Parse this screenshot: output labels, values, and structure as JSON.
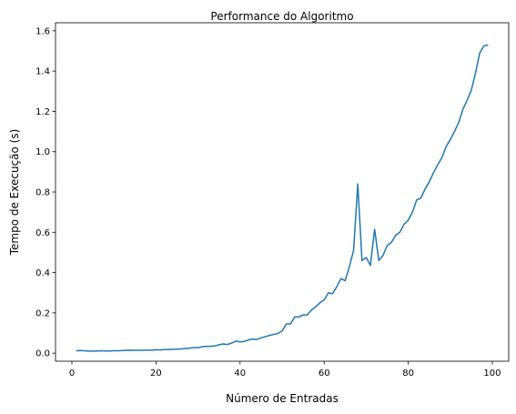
{
  "chart_data": {
    "type": "line",
    "title": "Performance do Algoritmo",
    "x_label": "Número de Entradas",
    "y_label": "Tempo de Execução (s)",
    "x": [
      1,
      2,
      3,
      4,
      5,
      6,
      7,
      8,
      9,
      10,
      11,
      12,
      13,
      14,
      15,
      16,
      17,
      18,
      19,
      20,
      21,
      22,
      23,
      24,
      25,
      26,
      27,
      28,
      29,
      30,
      31,
      32,
      33,
      34,
      35,
      36,
      37,
      38,
      39,
      40,
      41,
      42,
      43,
      44,
      45,
      46,
      47,
      48,
      49,
      50,
      51,
      52,
      53,
      54,
      55,
      56,
      57,
      58,
      59,
      60,
      61,
      62,
      63,
      64,
      65,
      66,
      67,
      68,
      69,
      70,
      71,
      72,
      73,
      74,
      75,
      76,
      77,
      78,
      79,
      80,
      81,
      82,
      83,
      84,
      85,
      86,
      87,
      88,
      89,
      90,
      91,
      92,
      93,
      94,
      95,
      96,
      97,
      98,
      99
    ],
    "series": [
      {
        "color": "#1f77b4",
        "values": [
          0.012,
          0.013,
          0.012,
          0.01,
          0.01,
          0.011,
          0.012,
          0.011,
          0.011,
          0.012,
          0.012,
          0.013,
          0.014,
          0.015,
          0.014,
          0.014,
          0.015,
          0.015,
          0.015,
          0.017,
          0.016,
          0.018,
          0.018,
          0.019,
          0.02,
          0.021,
          0.023,
          0.025,
          0.028,
          0.027,
          0.032,
          0.034,
          0.034,
          0.036,
          0.042,
          0.046,
          0.043,
          0.05,
          0.06,
          0.056,
          0.058,
          0.066,
          0.07,
          0.068,
          0.076,
          0.082,
          0.088,
          0.093,
          0.098,
          0.11,
          0.145,
          0.145,
          0.18,
          0.18,
          0.19,
          0.19,
          0.215,
          0.23,
          0.25,
          0.265,
          0.3,
          0.295,
          0.33,
          0.37,
          0.36,
          0.43,
          0.51,
          0.84,
          0.46,
          0.475,
          0.435,
          0.615,
          0.46,
          0.485,
          0.535,
          0.55,
          0.585,
          0.6,
          0.64,
          0.66,
          0.7,
          0.76,
          0.77,
          0.815,
          0.85,
          0.895,
          0.935,
          0.97,
          1.025,
          1.06,
          1.1,
          1.145,
          1.21,
          1.255,
          1.305,
          1.39,
          1.49,
          1.525,
          1.53
        ]
      }
    ],
    "xlim": [
      -3.9,
      103.9
    ],
    "xticks": [
      0,
      20,
      40,
      60,
      80,
      100
    ],
    "ylim": [
      -0.04,
      1.64
    ],
    "yticks": [
      {
        "value": 0,
        "label": "0.0"
      },
      0.2,
      0.4,
      0.6,
      0.8,
      {
        "value": 1,
        "label": "1.0"
      },
      1.2,
      1.4,
      1.6
    ]
  }
}
